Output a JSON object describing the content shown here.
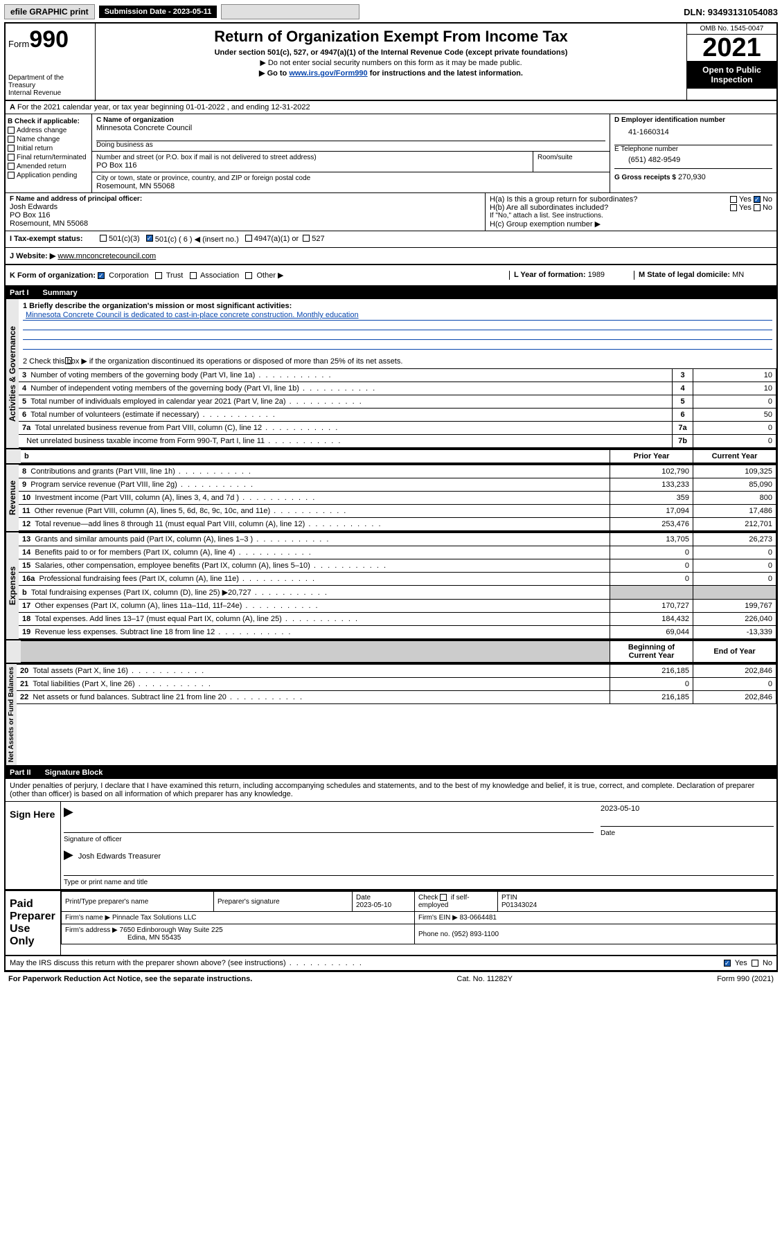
{
  "topbar": {
    "efile": "efile GRAPHIC print",
    "submission_label": "Submission Date - 2023-05-11",
    "dln": "DLN: 93493131054083"
  },
  "header": {
    "form_word": "Form",
    "form_num": "990",
    "dept": "Department of the Treasury",
    "irs": "Internal Revenue",
    "title": "Return of Organization Exempt From Income Tax",
    "sub1": "Under section 501(c), 527, or 4947(a)(1) of the Internal Revenue Code (except private foundations)",
    "sub2": "▶ Do not enter social security numbers on this form as it may be made public.",
    "sub3_pre": "▶ Go to ",
    "sub3_link": "www.irs.gov/Form990",
    "sub3_post": " for instructions and the latest information.",
    "omb": "OMB No. 1545-0047",
    "year": "2021",
    "open": "Open to Public Inspection"
  },
  "a_line": "For the 2021 calendar year, or tax year beginning 01-01-2022   , and ending 12-31-2022",
  "a_prefix": "A",
  "b": {
    "title": "B Check if applicable:",
    "items": [
      "Address change",
      "Name change",
      "Initial return",
      "Final return/terminated",
      "Amended return",
      "Application pending"
    ]
  },
  "c": {
    "label": "C Name of organization",
    "name": "Minnesota Concrete Council",
    "dba_label": "Doing business as",
    "addr_label": "Number and street (or P.O. box if mail is not delivered to street address)",
    "room_label": "Room/suite",
    "addr": "PO Box 116",
    "city_label": "City or town, state or province, country, and ZIP or foreign postal code",
    "city": "Rosemount, MN  55068"
  },
  "d": {
    "label": "D Employer identification number",
    "value": "41-1660314"
  },
  "e": {
    "label": "E Telephone number",
    "value": "(651) 482-9549"
  },
  "g": {
    "label": "G Gross receipts $",
    "value": "270,930"
  },
  "f": {
    "label": "F  Name and address of principal officer:",
    "name": "Josh Edwards",
    "addr": "PO Box 116",
    "city": "Rosemount, MN  55068"
  },
  "h": {
    "a": "H(a)  Is this a group return for subordinates?",
    "b": "H(b)  Are all subordinates included?",
    "no_note": "If \"No,\" attach a list. See instructions.",
    "c": "H(c)  Group exemption number ▶",
    "yes": "Yes",
    "no": "No"
  },
  "i": {
    "label": "I     Tax-exempt status:",
    "opt1": "501(c)(3)",
    "opt2": "501(c) ( 6 ) ◀ (insert no.)",
    "opt3": "4947(a)(1) or",
    "opt4": "527"
  },
  "j": {
    "label": "J     Website: ▶",
    "value": "www.mnconcretecouncil.com"
  },
  "k": {
    "label": "K Form of organization:",
    "opts": [
      "Corporation",
      "Trust",
      "Association",
      "Other ▶"
    ]
  },
  "l": {
    "label": "L Year of formation:",
    "value": "1989"
  },
  "m": {
    "label": "M State of legal domicile:",
    "value": "MN"
  },
  "part1": {
    "label": "Part I",
    "title": "Summary"
  },
  "summary": {
    "q1_label": "1  Briefly describe the organization's mission or most significant activities:",
    "q1_text": "Minnesota Concrete Council is dedicated to cast-in-place concrete construction. Monthly education",
    "q2": "2    Check this box ▶      if the organization discontinued its operations or disposed of more than 25% of its net assets.",
    "rows_ag": [
      {
        "n": "3",
        "label": "Number of voting members of the governing body (Part VI, line 1a)",
        "box": "3",
        "val": "10"
      },
      {
        "n": "4",
        "label": "Number of independent voting members of the governing body (Part VI, line 1b)",
        "box": "4",
        "val": "10"
      },
      {
        "n": "5",
        "label": "Total number of individuals employed in calendar year 2021 (Part V, line 2a)",
        "box": "5",
        "val": "0"
      },
      {
        "n": "6",
        "label": "Total number of volunteers (estimate if necessary)",
        "box": "6",
        "val": "50"
      },
      {
        "n": "7a",
        "label": "Total unrelated business revenue from Part VIII, column (C), line 12",
        "box": "7a",
        "val": "0"
      },
      {
        "n": "",
        "label": "Net unrelated business taxable income from Form 990-T, Part I, line 11",
        "box": "7b",
        "val": "0"
      }
    ],
    "col_prior": "Prior Year",
    "col_current": "Current Year",
    "revenue": [
      {
        "n": "8",
        "label": "Contributions and grants (Part VIII, line 1h)",
        "p": "102,790",
        "c": "109,325"
      },
      {
        "n": "9",
        "label": "Program service revenue (Part VIII, line 2g)",
        "p": "133,233",
        "c": "85,090"
      },
      {
        "n": "10",
        "label": "Investment income (Part VIII, column (A), lines 3, 4, and 7d )",
        "p": "359",
        "c": "800"
      },
      {
        "n": "11",
        "label": "Other revenue (Part VIII, column (A), lines 5, 6d, 8c, 9c, 10c, and 11e)",
        "p": "17,094",
        "c": "17,486"
      },
      {
        "n": "12",
        "label": "Total revenue—add lines 8 through 11 (must equal Part VIII, column (A), line 12)",
        "p": "253,476",
        "c": "212,701"
      }
    ],
    "expenses": [
      {
        "n": "13",
        "label": "Grants and similar amounts paid (Part IX, column (A), lines 1–3 )",
        "p": "13,705",
        "c": "26,273"
      },
      {
        "n": "14",
        "label": "Benefits paid to or for members (Part IX, column (A), line 4)",
        "p": "0",
        "c": "0"
      },
      {
        "n": "15",
        "label": "Salaries, other compensation, employee benefits (Part IX, column (A), lines 5–10)",
        "p": "0",
        "c": "0"
      },
      {
        "n": "16a",
        "label": "Professional fundraising fees (Part IX, column (A), line 11e)",
        "p": "0",
        "c": "0"
      },
      {
        "n": "b",
        "label": "Total fundraising expenses (Part IX, column (D), line 25) ▶20,727",
        "p": "",
        "c": "",
        "grey": true
      },
      {
        "n": "17",
        "label": "Other expenses (Part IX, column (A), lines 11a–11d, 11f–24e)",
        "p": "170,727",
        "c": "199,767"
      },
      {
        "n": "18",
        "label": "Total expenses. Add lines 13–17 (must equal Part IX, column (A), line 25)",
        "p": "184,432",
        "c": "226,040"
      },
      {
        "n": "19",
        "label": "Revenue less expenses. Subtract line 18 from line 12",
        "p": "69,044",
        "c": "-13,339"
      }
    ],
    "col_begin": "Beginning of Current Year",
    "col_end": "End of Year",
    "netassets": [
      {
        "n": "20",
        "label": "Total assets (Part X, line 16)",
        "p": "216,185",
        "c": "202,846"
      },
      {
        "n": "21",
        "label": "Total liabilities (Part X, line 26)",
        "p": "0",
        "c": "0"
      },
      {
        "n": "22",
        "label": "Net assets or fund balances. Subtract line 21 from line 20",
        "p": "216,185",
        "c": "202,846"
      }
    ],
    "vert_ag": "Activities & Governance",
    "vert_rev": "Revenue",
    "vert_exp": "Expenses",
    "vert_na": "Net Assets or Fund Balances"
  },
  "part2": {
    "label": "Part II",
    "title": "Signature Block"
  },
  "sig": {
    "penalties": "Under penalties of perjury, I declare that I have examined this return, including accompanying schedules and statements, and to the best of my knowledge and belief, it is true, correct, and complete. Declaration of preparer (other than officer) is based on all information of which preparer has any knowledge.",
    "sign_here": "Sign Here",
    "sig_officer": "Signature of officer",
    "date": "Date",
    "date_val": "2023-05-10",
    "name_title": "Josh Edwards  Treasurer",
    "type_name": "Type or print name and title"
  },
  "preparer": {
    "label": "Paid Preparer Use Only",
    "h1": "Print/Type preparer's name",
    "h2": "Preparer's signature",
    "h3": "Date",
    "h3v": "2023-05-10",
    "h4": "Check        if self-employed",
    "h5": "PTIN",
    "h5v": "P01343024",
    "firm_name_l": "Firm's name    ▶",
    "firm_name": "Pinnacle Tax Solutions LLC",
    "firm_ein_l": "Firm's EIN ▶",
    "firm_ein": "83-0664481",
    "firm_addr_l": "Firm's address ▶",
    "firm_addr": "7650 Edinborough Way Suite 225",
    "firm_city": "Edina, MN  55435",
    "phone_l": "Phone no.",
    "phone": "(952) 893-1100"
  },
  "may_discuss": "May the IRS discuss this return with the preparer shown above? (see instructions)",
  "footer": {
    "left": "For Paperwork Reduction Act Notice, see the separate instructions.",
    "mid": "Cat. No. 11282Y",
    "right": "Form 990 (2021)"
  }
}
